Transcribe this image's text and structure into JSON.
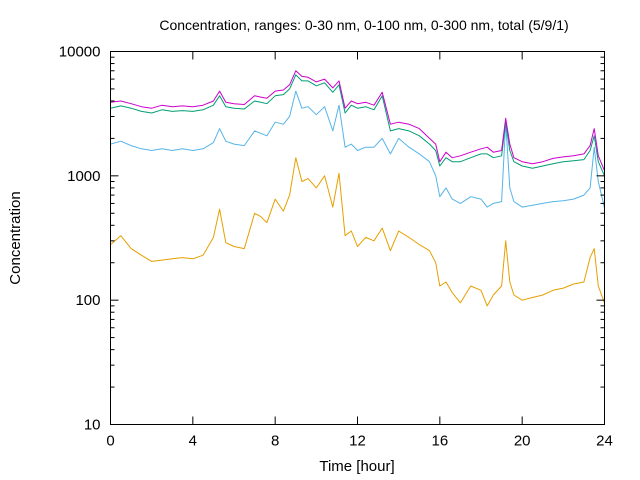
{
  "chart_data": {
    "type": "line",
    "title": "Concentration, ranges: 0-30 nm, 0-100 nm, 0-300 nm, total (5/9/1)",
    "xlabel": "Time [hour]",
    "ylabel": "Concentration",
    "xlim": [
      0,
      24
    ],
    "ylim": [
      10,
      10000
    ],
    "yscale": "log",
    "grid": false,
    "legend": "none",
    "xticks": [
      "0",
      "4",
      "8",
      "12",
      "16",
      "20",
      "24"
    ],
    "xtick_values": [
      0,
      4,
      8,
      12,
      16,
      20,
      24
    ],
    "yticks": [
      "10",
      "100",
      "1000",
      "10000"
    ],
    "ytick_values": [
      10,
      100,
      1000,
      10000
    ],
    "series": [
      {
        "color": "#e69f00",
        "x": [
          0,
          0.5,
          1,
          1.5,
          2,
          2.5,
          3,
          3.5,
          4,
          4.5,
          5,
          5.3,
          5.6,
          6,
          6.5,
          7,
          7.3,
          7.6,
          8,
          8.4,
          8.7,
          9,
          9.3,
          9.6,
          10,
          10.4,
          10.8,
          11.1,
          11.4,
          11.7,
          12,
          12.4,
          12.8,
          13.2,
          13.6,
          14,
          14.5,
          15,
          15.5,
          15.8,
          16,
          16.3,
          16.6,
          17,
          17.5,
          18,
          18.3,
          18.6,
          19,
          19.2,
          19.4,
          19.6,
          20,
          20.5,
          21,
          21.5,
          22,
          22.5,
          23,
          23.3,
          23.5,
          23.7,
          24
        ],
        "values": [
          280,
          330,
          260,
          230,
          205,
          210,
          215,
          220,
          215,
          230,
          320,
          540,
          290,
          270,
          260,
          500,
          470,
          420,
          650,
          520,
          700,
          1400,
          900,
          950,
          800,
          1000,
          560,
          1050,
          330,
          360,
          270,
          320,
          300,
          380,
          250,
          360,
          320,
          280,
          250,
          200,
          130,
          140,
          115,
          95,
          130,
          120,
          90,
          110,
          130,
          300,
          140,
          110,
          100,
          105,
          110,
          120,
          125,
          135,
          140,
          220,
          260,
          130,
          95
        ]
      },
      {
        "color": "#56b4e9",
        "x": [
          0,
          0.5,
          1,
          1.5,
          2,
          2.5,
          3,
          3.5,
          4,
          4.5,
          5,
          5.3,
          5.6,
          6,
          6.5,
          7,
          7.3,
          7.6,
          8,
          8.4,
          8.7,
          9,
          9.3,
          9.6,
          10,
          10.4,
          10.8,
          11.1,
          11.4,
          11.7,
          12,
          12.4,
          12.8,
          13.2,
          13.6,
          14,
          14.5,
          15,
          15.5,
          15.8,
          16,
          16.3,
          16.6,
          17,
          17.5,
          18,
          18.3,
          18.6,
          19,
          19.2,
          19.4,
          19.6,
          20,
          20.5,
          21,
          21.5,
          22,
          22.5,
          23,
          23.3,
          23.5,
          23.7,
          24
        ],
        "values": [
          1800,
          1900,
          1750,
          1650,
          1600,
          1650,
          1600,
          1650,
          1600,
          1650,
          1850,
          2400,
          1900,
          1800,
          1750,
          2300,
          2200,
          2100,
          2700,
          2600,
          3000,
          4800,
          3500,
          3600,
          3100,
          3600,
          2300,
          3700,
          1700,
          1800,
          1600,
          1700,
          1700,
          2000,
          1500,
          2000,
          1700,
          1500,
          1300,
          1000,
          680,
          800,
          650,
          600,
          680,
          650,
          560,
          600,
          620,
          2700,
          800,
          620,
          560,
          580,
          600,
          620,
          630,
          650,
          700,
          800,
          1700,
          900,
          550
        ]
      },
      {
        "color": "#009e73",
        "x": [
          0,
          0.5,
          1,
          1.5,
          2,
          2.5,
          3,
          3.5,
          4,
          4.5,
          5,
          5.3,
          5.6,
          6,
          6.5,
          7,
          7.3,
          7.6,
          8,
          8.4,
          8.7,
          9,
          9.3,
          9.6,
          10,
          10.4,
          10.8,
          11.1,
          11.4,
          11.7,
          12,
          12.4,
          12.8,
          13.2,
          13.6,
          14,
          14.5,
          15,
          15.5,
          15.8,
          16,
          16.3,
          16.6,
          17,
          17.5,
          18,
          18.3,
          18.6,
          19,
          19.2,
          19.4,
          19.6,
          20,
          20.5,
          21,
          21.5,
          22,
          22.5,
          23,
          23.3,
          23.5,
          23.7,
          24
        ],
        "values": [
          3500,
          3650,
          3500,
          3300,
          3200,
          3400,
          3300,
          3350,
          3300,
          3400,
          3700,
          4400,
          3600,
          3500,
          3450,
          4000,
          3900,
          3800,
          4400,
          4500,
          5000,
          6500,
          5800,
          5800,
          5300,
          5600,
          4700,
          5400,
          3200,
          3700,
          3500,
          3600,
          3400,
          4400,
          2300,
          2400,
          2300,
          2100,
          1800,
          1600,
          1200,
          1400,
          1300,
          1300,
          1400,
          1500,
          1500,
          1400,
          1450,
          2700,
          1600,
          1300,
          1200,
          1150,
          1200,
          1250,
          1300,
          1320,
          1350,
          1600,
          2100,
          1300,
          1000
        ]
      },
      {
        "color": "#cc00cc",
        "x": [
          0,
          0.5,
          1,
          1.5,
          2,
          2.5,
          3,
          3.5,
          4,
          4.5,
          5,
          5.3,
          5.6,
          6,
          6.5,
          7,
          7.3,
          7.6,
          8,
          8.4,
          8.7,
          9,
          9.3,
          9.6,
          10,
          10.4,
          10.8,
          11.1,
          11.4,
          11.7,
          12,
          12.4,
          12.8,
          13.2,
          13.6,
          14,
          14.5,
          15,
          15.5,
          15.8,
          16,
          16.3,
          16.6,
          17,
          17.5,
          18,
          18.3,
          18.6,
          19,
          19.2,
          19.4,
          19.6,
          20,
          20.5,
          21,
          21.5,
          22,
          22.5,
          23,
          23.3,
          23.5,
          23.7,
          24
        ],
        "values": [
          3900,
          4000,
          3800,
          3600,
          3500,
          3700,
          3600,
          3650,
          3600,
          3700,
          4000,
          4800,
          3900,
          3800,
          3750,
          4400,
          4300,
          4200,
          4800,
          4900,
          5400,
          7000,
          6300,
          6200,
          5700,
          6000,
          5100,
          5800,
          3500,
          4000,
          3800,
          3900,
          3700,
          4700,
          2600,
          2700,
          2600,
          2400,
          2000,
          1800,
          1300,
          1550,
          1400,
          1450,
          1550,
          1650,
          1700,
          1550,
          1600,
          2900,
          1800,
          1400,
          1300,
          1250,
          1300,
          1380,
          1420,
          1450,
          1500,
          1750,
          2400,
          1450,
          1100
        ]
      }
    ]
  }
}
